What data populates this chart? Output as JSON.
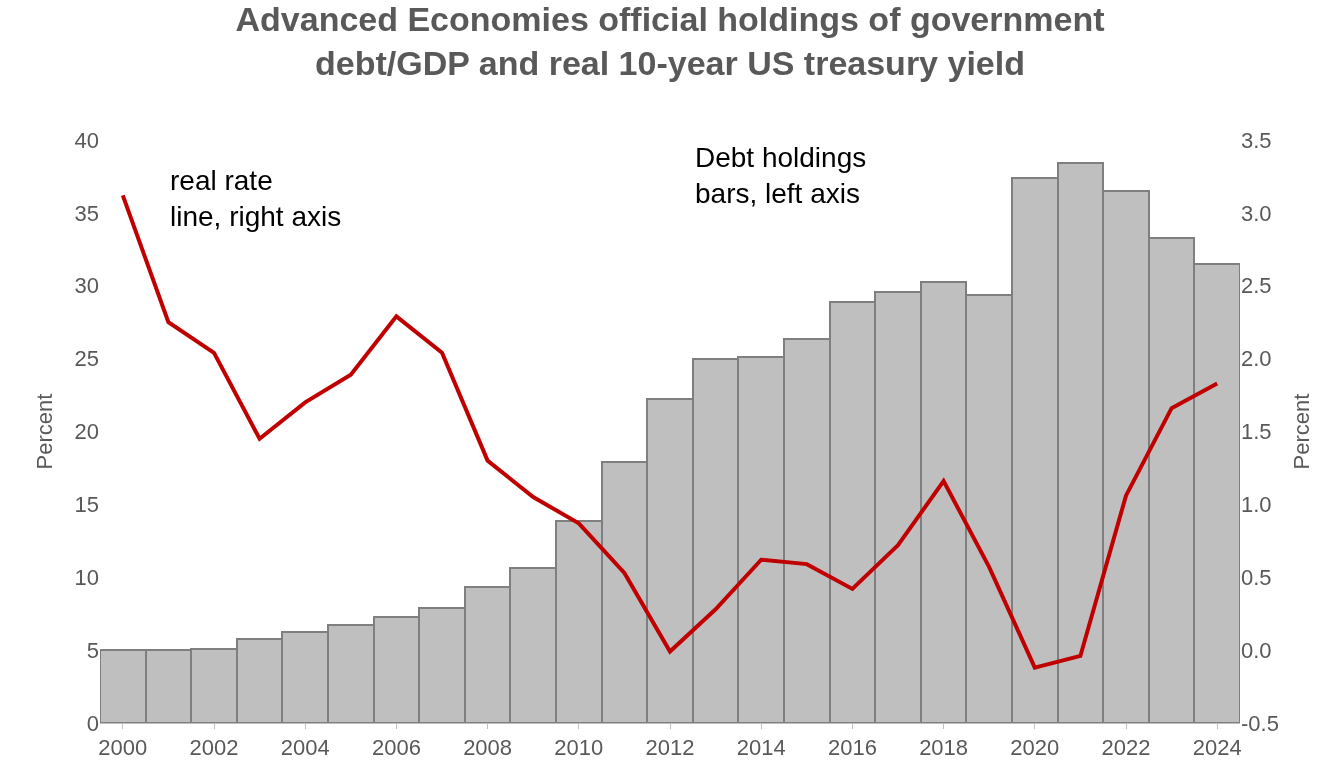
{
  "chart_data": {
    "type": "bar",
    "title": "Advanced Economies official holdings of government debt/GDP and real 10-year US treasury yield",
    "x": [
      2000,
      2001,
      2002,
      2003,
      2004,
      2005,
      2006,
      2007,
      2008,
      2009,
      2010,
      2011,
      2012,
      2013,
      2014,
      2015,
      2016,
      2017,
      2018,
      2019,
      2020,
      2021,
      2022,
      2023,
      2024
    ],
    "series": [
      {
        "color": "#bfbfbf",
        "values": [
          5.0,
          5.0,
          5.1,
          5.75,
          6.25,
          6.75,
          7.25,
          7.9,
          9.3,
          10.65,
          13.85,
          17.9,
          22.2,
          25.0,
          25.1,
          26.35,
          28.9,
          29.6,
          30.25,
          29.4,
          37.4,
          38.4,
          36.5,
          33.3,
          31.5
        ]
      },
      {
        "type": "line",
        "axis": "y2",
        "color": "#c00000",
        "values": [
          3.12,
          2.25,
          2.04,
          1.45,
          1.7,
          1.89,
          2.29,
          2.04,
          1.3,
          1.05,
          0.87,
          0.53,
          -0.01,
          0.28,
          0.62,
          0.59,
          0.42,
          0.72,
          1.16,
          0.57,
          -0.12,
          -0.04,
          1.06,
          1.66,
          1.83
        ]
      }
    ],
    "ylabel": "Percent",
    "y2label": "Percent",
    "xlim": [
      1999.5,
      2024.5
    ],
    "xticks": [
      2000,
      2002,
      2004,
      2006,
      2008,
      2010,
      2012,
      2014,
      2016,
      2018,
      2020,
      2022,
      2024
    ],
    "ylim": [
      0,
      40
    ],
    "yticks": [
      0,
      5,
      10,
      15,
      20,
      25,
      30,
      35,
      40
    ],
    "y2lim": [
      -0.5,
      3.5
    ],
    "y2ticks": [
      -0.5,
      {
        "value": 0,
        "label": "0.0"
      },
      0.5,
      {
        "value": 1,
        "label": "1.0"
      },
      1.5,
      {
        "value": 2,
        "label": "2.0"
      },
      2.5,
      {
        "value": 3,
        "label": "3.0"
      },
      3.5
    ],
    "annotations": [
      "real rate\nline, right axis",
      "Debt holdings\nbars, left axis"
    ],
    "marker": "none",
    "line_style": "solid"
  }
}
